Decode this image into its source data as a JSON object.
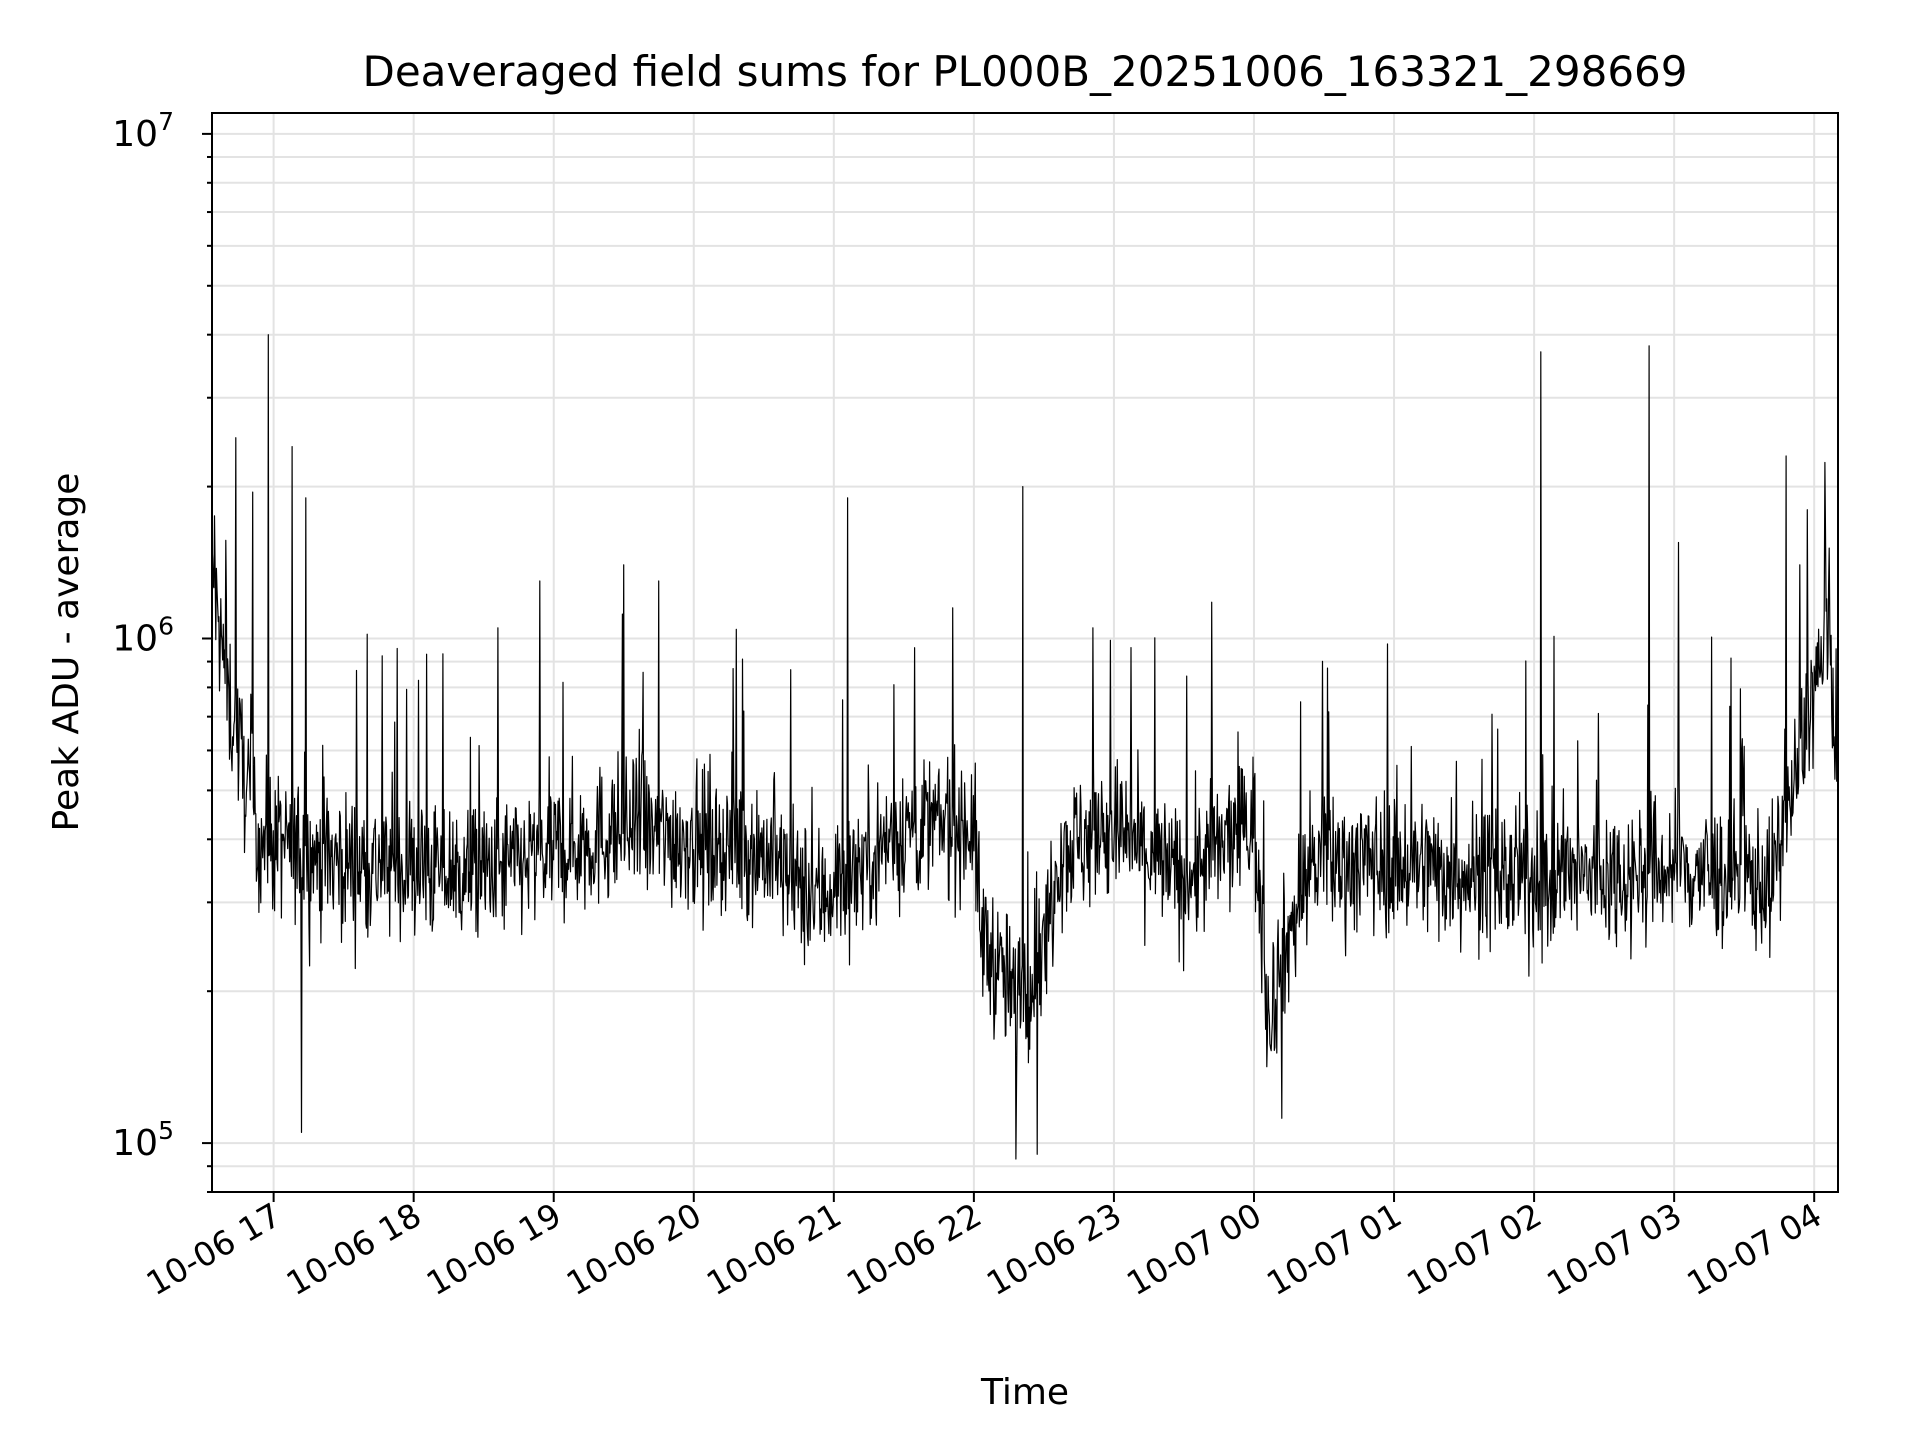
{
  "chart_data": {
    "type": "line",
    "title": "Deaveraged field sums for PL000B_20251006_163321_298669",
    "xlabel": "Time",
    "ylabel": "Peak ADU - average",
    "yscale": "log",
    "ylim": [
      80000,
      11000000
    ],
    "xlim_hours": [
      16.56,
      28.17
    ],
    "grid": true,
    "x_ticks": [
      {
        "hour": 17,
        "label": "10-06 17"
      },
      {
        "hour": 18,
        "label": "10-06 18"
      },
      {
        "hour": 19,
        "label": "10-06 19"
      },
      {
        "hour": 20,
        "label": "10-06 20"
      },
      {
        "hour": 21,
        "label": "10-06 21"
      },
      {
        "hour": 22,
        "label": "10-06 22"
      },
      {
        "hour": 23,
        "label": "10-06 23"
      },
      {
        "hour": 24,
        "label": "10-07 00"
      },
      {
        "hour": 25,
        "label": "10-07 01"
      },
      {
        "hour": 26,
        "label": "10-07 02"
      },
      {
        "hour": 27,
        "label": "10-07 03"
      },
      {
        "hour": 28,
        "label": "10-07 04"
      }
    ],
    "y_ticks": [
      {
        "value": 100000,
        "base": "10",
        "exp": "5"
      },
      {
        "value": 1000000,
        "base": "10",
        "exp": "6"
      },
      {
        "value": 10000000,
        "base": "10",
        "exp": "7"
      }
    ],
    "series": [
      {
        "name": "Peak ADU - average",
        "color": "#000000",
        "baseline": [
          [
            16.56,
            1300000
          ],
          [
            16.7,
            700000
          ],
          [
            16.9,
            400000
          ],
          [
            17.5,
            360000
          ],
          [
            18.5,
            340000
          ],
          [
            19.5,
            420000
          ],
          [
            20.5,
            380000
          ],
          [
            20.85,
            300000
          ],
          [
            21.5,
            420000
          ],
          [
            22.0,
            430000
          ],
          [
            22.05,
            260000
          ],
          [
            22.3,
            190000
          ],
          [
            22.5,
            240000
          ],
          [
            22.6,
            380000
          ],
          [
            23.0,
            420000
          ],
          [
            23.5,
            330000
          ],
          [
            24.0,
            440000
          ],
          [
            24.1,
            180000
          ],
          [
            24.2,
            230000
          ],
          [
            24.4,
            360000
          ],
          [
            25.0,
            360000
          ],
          [
            26.0,
            330000
          ],
          [
            27.0,
            350000
          ],
          [
            27.7,
            330000
          ],
          [
            27.85,
            500000
          ],
          [
            28.0,
            800000
          ],
          [
            28.1,
            1000000
          ],
          [
            28.17,
            600000
          ]
        ],
        "spikes": [
          [
            16.58,
            1750000
          ],
          [
            16.73,
            2500000
          ],
          [
            16.85,
            1950000
          ],
          [
            16.96,
            4000000
          ],
          [
            17.13,
            2400000
          ],
          [
            17.23,
            1900000
          ],
          [
            17.2,
            105000
          ],
          [
            17.67,
            1020000
          ],
          [
            18.6,
            1050000
          ],
          [
            18.9,
            1300000
          ],
          [
            19.5,
            1400000
          ],
          [
            19.75,
            1300000
          ],
          [
            21.1,
            1900000
          ],
          [
            21.85,
            1150000
          ],
          [
            22.35,
            2000000
          ],
          [
            22.3,
            93000
          ],
          [
            22.45,
            95000
          ],
          [
            22.85,
            1050000
          ],
          [
            23.7,
            1180000
          ],
          [
            24.2,
            112000
          ],
          [
            26.05,
            3700000
          ],
          [
            26.82,
            3800000
          ],
          [
            27.03,
            1550000
          ],
          [
            27.8,
            2300000
          ],
          [
            27.95,
            1800000
          ]
        ],
        "noise": 0.28,
        "n_points": 2600
      }
    ]
  }
}
